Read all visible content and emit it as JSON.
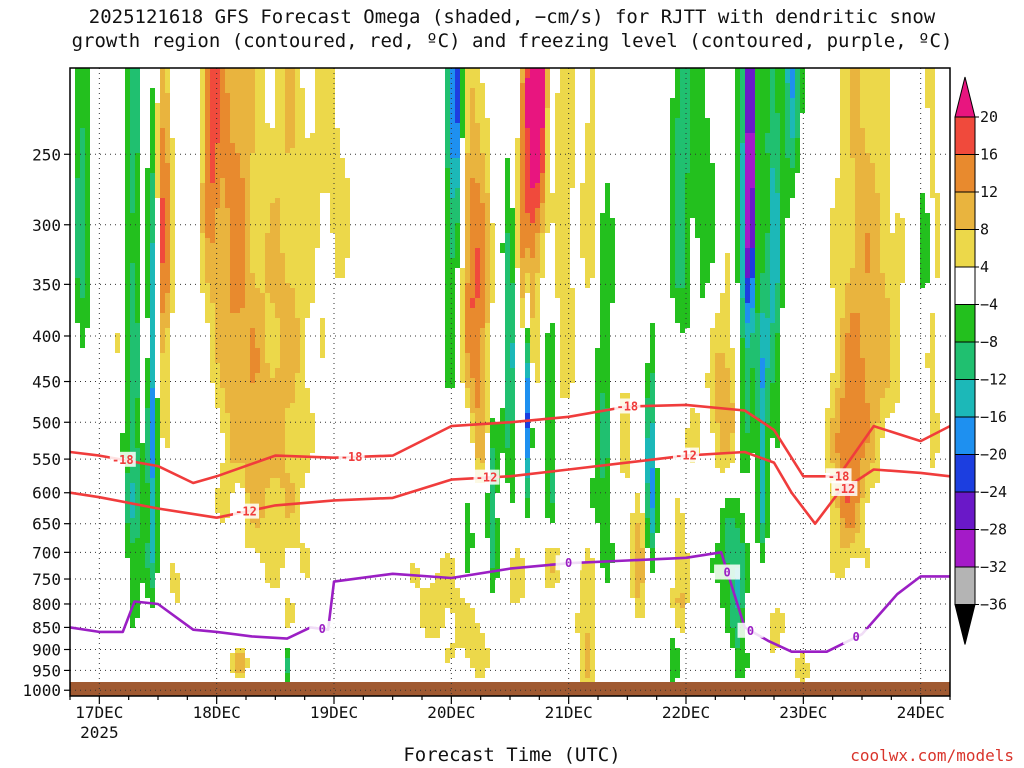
{
  "title": {
    "line1": "2025121618 GFS Forecast Omega (shaded, −cm/s) for RJTT with dendritic snow",
    "line2": "growth region (contoured, red, ºC) and freezing level (contoured, purple, ºC)"
  },
  "xlabel": "Forecast Time (UTC)",
  "credit": "coolwx.com/models",
  "chart_data": {
    "type": "heatmap",
    "title": "2025121618 GFS Forecast Omega (shaded, −cm/s) for RJTT with dendritic snow growth region (contoured, red, ºC) and freezing level (contoured, purple, ºC)",
    "xlabel": "Forecast Time (UTC)",
    "ylabel": "",
    "x_ticks": [
      "17DEC",
      "18DEC",
      "19DEC",
      "20DEC",
      "21DEC",
      "22DEC",
      "23DEC",
      "24DEC"
    ],
    "x_year_label": "2025",
    "x_range_days": [
      16.75,
      24.25
    ],
    "y_ticks": [
      250,
      300,
      350,
      400,
      450,
      500,
      550,
      600,
      650,
      700,
      750,
      800,
      850,
      900,
      950,
      1000
    ],
    "y_range_hpa": [
      200,
      1015
    ],
    "y_axis": "log-pressure (inverted)",
    "grid": true,
    "colorbar": {
      "labels": [
        "20",
        "16",
        "12",
        "8",
        "4",
        "−4",
        "−8",
        "−12",
        "−16",
        "−20",
        "−24",
        "−28",
        "−32",
        "−36"
      ],
      "levels": [
        20,
        16,
        12,
        8,
        4,
        -4,
        -8,
        -12,
        -16,
        -20,
        -24,
        -28,
        -32,
        -36
      ],
      "colors": [
        "#e8157f",
        "#f04a3c",
        "#e88a2e",
        "#e9b43e",
        "#ecd84a",
        "#ffffff",
        "#23c01e",
        "#20c070",
        "#1cb8b8",
        "#1e90f0",
        "#1c3ee0",
        "#6a18c8",
        "#a41ac8",
        "#b4b4b4",
        "#000000"
      ]
    },
    "contours": [
      {
        "name": "dendritic -18 ºC",
        "label": "-18",
        "color": "#f03c3c",
        "x": [
          16.75,
          17.0,
          17.5,
          17.8,
          18.0,
          18.5,
          19.0,
          19.5,
          20.0,
          20.5,
          21.0,
          21.5,
          22.0,
          22.5,
          22.75,
          23.0,
          23.3,
          23.6,
          24.0,
          24.25
        ],
        "p": [
          540,
          545,
          560,
          585,
          575,
          545,
          548,
          545,
          505,
          500,
          493,
          480,
          478,
          485,
          510,
          575,
          575,
          505,
          525,
          505
        ]
      },
      {
        "name": "dendritic -12 ºC",
        "label": "-12",
        "color": "#f03c3c",
        "x": [
          16.75,
          17.0,
          17.5,
          18.0,
          18.5,
          19.0,
          19.5,
          20.0,
          20.5,
          21.0,
          21.5,
          22.0,
          22.5,
          22.75,
          22.9,
          23.1,
          23.3,
          23.6,
          24.0,
          24.25
        ],
        "p": [
          600,
          607,
          625,
          640,
          620,
          612,
          608,
          580,
          575,
          565,
          555,
          545,
          540,
          555,
          600,
          650,
          600,
          565,
          570,
          575
        ]
      },
      {
        "name": "freezing level 0 ºC",
        "label": "0",
        "color": "#9b1fc4",
        "x": [
          16.75,
          17.0,
          17.2,
          17.3,
          17.5,
          17.8,
          18.0,
          18.3,
          18.6,
          18.8,
          18.95,
          19.0,
          19.5,
          20.0,
          20.5,
          21.0,
          21.5,
          22.0,
          22.3,
          22.5,
          22.7,
          22.9,
          23.2,
          23.5,
          23.8,
          24.0,
          24.25
        ],
        "p": [
          850,
          860,
          860,
          795,
          800,
          855,
          860,
          870,
          875,
          850,
          855,
          755,
          740,
          748,
          730,
          720,
          715,
          710,
          700,
          850,
          880,
          905,
          905,
          865,
          780,
          745,
          745
        ]
      }
    ],
    "contour_labels": [
      "-18",
      "-18",
      "-18",
      "-18",
      "-12",
      "-12",
      "-12",
      "-12",
      "0",
      "0",
      "0",
      "0",
      "0"
    ]
  }
}
